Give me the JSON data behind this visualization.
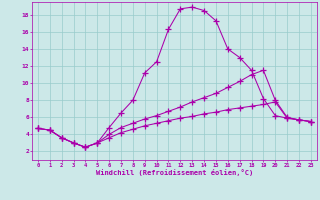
{
  "xlabel": "Windchill (Refroidissement éolien,°C)",
  "bg_color": "#cce8e8",
  "line_color": "#aa00aa",
  "grid_color": "#99cccc",
  "axis_label_color": "#aa00aa",
  "tick_color": "#aa00aa",
  "xlim": [
    -0.5,
    23.5
  ],
  "ylim": [
    1.0,
    19.5
  ],
  "xticks": [
    0,
    1,
    2,
    3,
    4,
    5,
    6,
    7,
    8,
    9,
    10,
    11,
    12,
    13,
    14,
    15,
    16,
    17,
    18,
    19,
    20,
    21,
    22,
    23
  ],
  "yticks": [
    2,
    4,
    6,
    8,
    10,
    12,
    14,
    16,
    18
  ],
  "curve1_x": [
    0,
    1,
    2,
    3,
    4,
    5,
    6,
    7,
    8,
    9,
    10,
    11,
    12,
    13,
    14,
    15,
    16,
    17,
    18,
    19,
    20,
    21,
    22,
    23
  ],
  "curve1_y": [
    4.7,
    4.5,
    3.6,
    3.0,
    2.5,
    3.0,
    4.8,
    6.5,
    8.0,
    11.2,
    12.5,
    16.3,
    18.7,
    18.9,
    18.5,
    17.3,
    14.0,
    13.0,
    11.5,
    8.2,
    6.2,
    5.9,
    5.7,
    5.5
  ],
  "curve2_x": [
    0,
    1,
    2,
    3,
    4,
    5,
    6,
    7,
    8,
    9,
    10,
    11,
    12,
    13,
    14,
    15,
    16,
    17,
    18,
    19,
    20,
    21,
    22,
    23
  ],
  "curve2_y": [
    4.7,
    4.5,
    3.6,
    3.0,
    2.5,
    3.0,
    4.0,
    4.8,
    5.3,
    5.8,
    6.2,
    6.7,
    7.2,
    7.8,
    8.3,
    8.8,
    9.5,
    10.2,
    11.0,
    11.5,
    8.0,
    6.0,
    5.7,
    5.5
  ],
  "curve3_x": [
    0,
    1,
    2,
    3,
    4,
    5,
    6,
    7,
    8,
    9,
    10,
    11,
    12,
    13,
    14,
    15,
    16,
    17,
    18,
    19,
    20,
    21,
    22,
    23
  ],
  "curve3_y": [
    4.7,
    4.5,
    3.6,
    3.0,
    2.5,
    3.0,
    3.6,
    4.2,
    4.6,
    5.0,
    5.3,
    5.6,
    5.9,
    6.1,
    6.4,
    6.6,
    6.9,
    7.1,
    7.3,
    7.5,
    7.8,
    5.9,
    5.7,
    5.5
  ]
}
